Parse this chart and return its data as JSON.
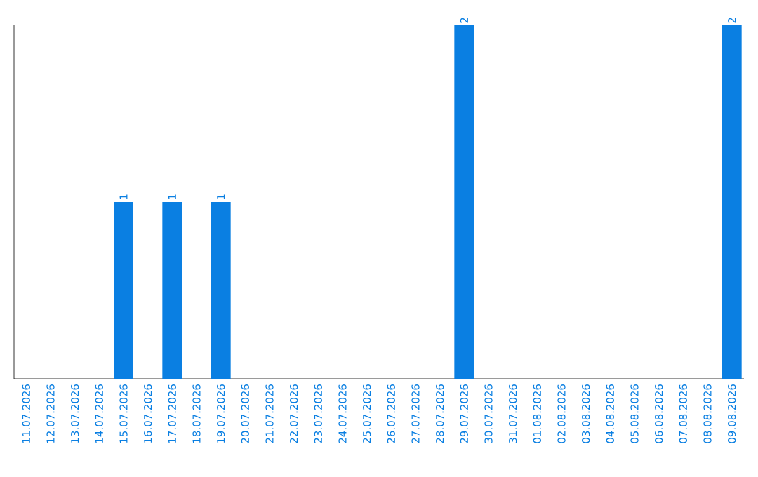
{
  "chart_data": {
    "type": "bar",
    "categories": [
      "11.07.2026",
      "12.07.2026",
      "13.07.2026",
      "14.07.2026",
      "15.07.2026",
      "16.07.2026",
      "17.07.2026",
      "18.07.2026",
      "19.07.2026",
      "20.07.2026",
      "21.07.2026",
      "22.07.2026",
      "23.07.2026",
      "24.07.2026",
      "25.07.2026",
      "26.07.2026",
      "27.07.2026",
      "28.07.2026",
      "29.07.2026",
      "30.07.2026",
      "31.07.2026",
      "01.08.2026",
      "02.08.2026",
      "03.08.2026",
      "04.08.2026",
      "05.08.2026",
      "06.08.2026",
      "07.08.2026",
      "08.08.2026",
      "09.08.2026"
    ],
    "values": [
      0,
      0,
      0,
      0,
      1,
      0,
      1,
      0,
      1,
      0,
      0,
      0,
      0,
      0,
      0,
      0,
      0,
      0,
      2,
      0,
      0,
      0,
      0,
      0,
      0,
      0,
      0,
      0,
      0,
      2
    ],
    "value_labels": [
      null,
      null,
      null,
      null,
      "1",
      null,
      "1",
      null,
      "1",
      null,
      null,
      null,
      null,
      null,
      null,
      null,
      null,
      null,
      "2",
      null,
      null,
      null,
      null,
      null,
      null,
      null,
      null,
      null,
      null,
      "2"
    ],
    "color": "#0a7fe2",
    "ylim": [
      0,
      2
    ],
    "tick_labels": "x"
  }
}
